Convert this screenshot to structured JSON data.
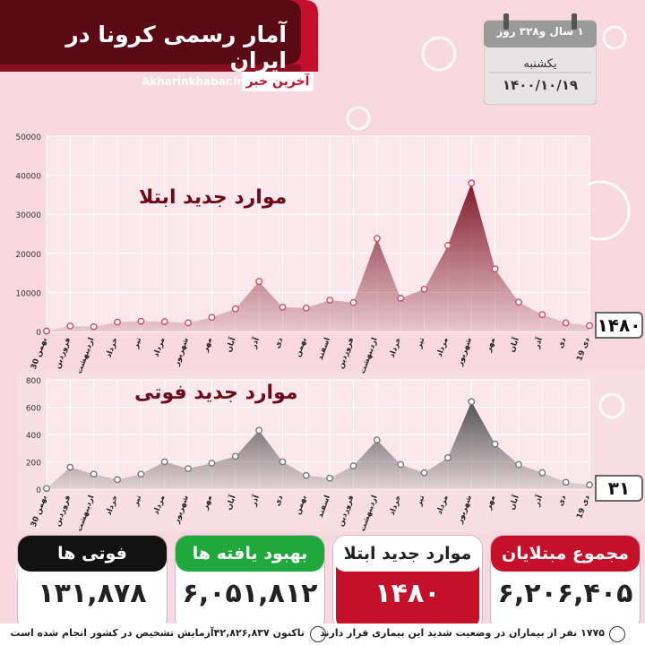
{
  "header": {
    "title": "آمار رسمی کرونا در ایران",
    "site_url": "Akharinkhabar.ir",
    "brand": "آخرین خبر"
  },
  "calendar": {
    "duration": "۱ سال و۳۲۸ روز",
    "weekday": "یکشنبه",
    "date": "۱۴۰۰/۱۰/۱۹"
  },
  "colors": {
    "accent_red": "#c5102a",
    "dark_red": "#5a0a14",
    "recovered_green": "#1fa83c",
    "cases_fill": "#7a0f1f",
    "deaths_fill": "#4a4a4a"
  },
  "chart_data": [
    {
      "type": "area",
      "title": "موارد جدید ابتلا",
      "ylim": [
        0,
        50000
      ],
      "yticks": [
        "0",
        "10000",
        "20000",
        "30000",
        "40000",
        "50000"
      ],
      "categories": [
        "30 بهمن",
        "فروردین",
        "اردیبهشت",
        "خرداد",
        "تیر",
        "مرداد",
        "شهریور",
        "مهر",
        "آبان",
        "آذر",
        "دی",
        "بهمن",
        "اسفند",
        "فروردین",
        "اردیبهشت",
        "خرداد",
        "تیر",
        "مرداد",
        "شهریور",
        "مهر",
        "آبان",
        "آذر",
        "دی",
        "19 دی"
      ],
      "x": [
        0,
        1,
        2,
        3,
        4,
        5,
        6,
        7,
        8,
        9,
        10,
        11,
        12,
        13,
        14,
        15,
        16,
        17,
        18,
        19,
        20,
        21,
        22,
        23
      ],
      "values": [
        100,
        1400,
        1200,
        2400,
        2600,
        2500,
        2200,
        3600,
        5800,
        12800,
        6200,
        6000,
        8000,
        7400,
        23800,
        8500,
        10800,
        22000,
        38000,
        16000,
        7500,
        4300,
        2200,
        1480
      ],
      "last_value": "۱۴۸۰",
      "grid": true
    },
    {
      "type": "area",
      "title": "موارد جدید فوتی",
      "ylim": [
        0,
        800
      ],
      "yticks": [
        "0",
        "200",
        "400",
        "600",
        "800"
      ],
      "categories": [
        "30 بهمن",
        "فروردین",
        "اردیبهشت",
        "خرداد",
        "تیر",
        "مرداد",
        "شهریور",
        "مهر",
        "آبان",
        "آذر",
        "دی",
        "بهمن",
        "اسفند",
        "فروردین",
        "اردیبهشت",
        "خرداد",
        "تیر",
        "مرداد",
        "شهریور",
        "مهر",
        "آبان",
        "آذر",
        "دی",
        "19 دی"
      ],
      "x": [
        0,
        1,
        2,
        3,
        4,
        5,
        6,
        7,
        8,
        9,
        10,
        11,
        12,
        13,
        14,
        15,
        16,
        17,
        18,
        19,
        20,
        21,
        22,
        23
      ],
      "values": [
        5,
        160,
        110,
        70,
        110,
        200,
        150,
        190,
        240,
        430,
        200,
        100,
        80,
        170,
        360,
        180,
        120,
        230,
        640,
        330,
        180,
        120,
        50,
        31
      ],
      "last_value": "۳۱",
      "grid": true
    }
  ],
  "cards": {
    "total": {
      "label": "مجموع مبتلایان",
      "value": "۶,۲۰۶,۴۰۵"
    },
    "new_cases": {
      "label": "موارد جدید ابتلا",
      "value": "۱۴۸۰"
    },
    "recovered": {
      "label": "بهبود یافته ها",
      "value": "۶,۰۵۱,۸۱۲"
    },
    "deaths": {
      "label": "فوتی ها",
      "value": "۱۳۱,۸۷۸"
    }
  },
  "footer": {
    "severe": "۱۷۷۵ نفر از بیماران در وضعیت شدید این بیماری قرار دارند",
    "tests": "تاکنون ۴۲,۸۲۶,۸۳۷آزمایش تشخیص در کشور انجام شده است"
  }
}
